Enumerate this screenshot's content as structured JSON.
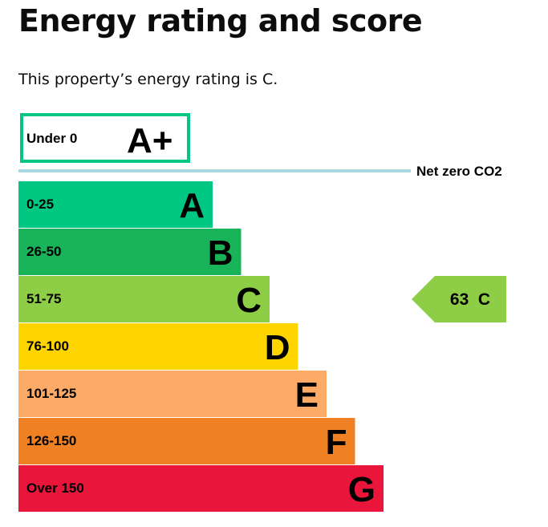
{
  "title": "Energy rating and score",
  "summary": "This property’s energy rating is C.",
  "chart_data": {
    "type": "bar",
    "top_band": {
      "range": "Under 0",
      "letter": "A+",
      "color": "#00c781"
    },
    "net_zero_label": "Net zero CO2",
    "net_zero_line_color": "#a8d8e0",
    "bands": [
      {
        "range": "0-25",
        "letter": "A",
        "color": "#00c781"
      },
      {
        "range": "26-50",
        "letter": "B",
        "color": "#19b459"
      },
      {
        "range": "51-75",
        "letter": "C",
        "color": "#8dce46"
      },
      {
        "range": "76-100",
        "letter": "D",
        "color": "#ffd500"
      },
      {
        "range": "101-125",
        "letter": "E",
        "color": "#fcaa65"
      },
      {
        "range": "126-150",
        "letter": "F",
        "color": "#ef8023"
      },
      {
        "range": "Over 150",
        "letter": "G",
        "color": "#e9153b"
      }
    ],
    "current": {
      "score": 63,
      "letter": "C",
      "label": "63  C",
      "color": "#8dce46"
    }
  }
}
